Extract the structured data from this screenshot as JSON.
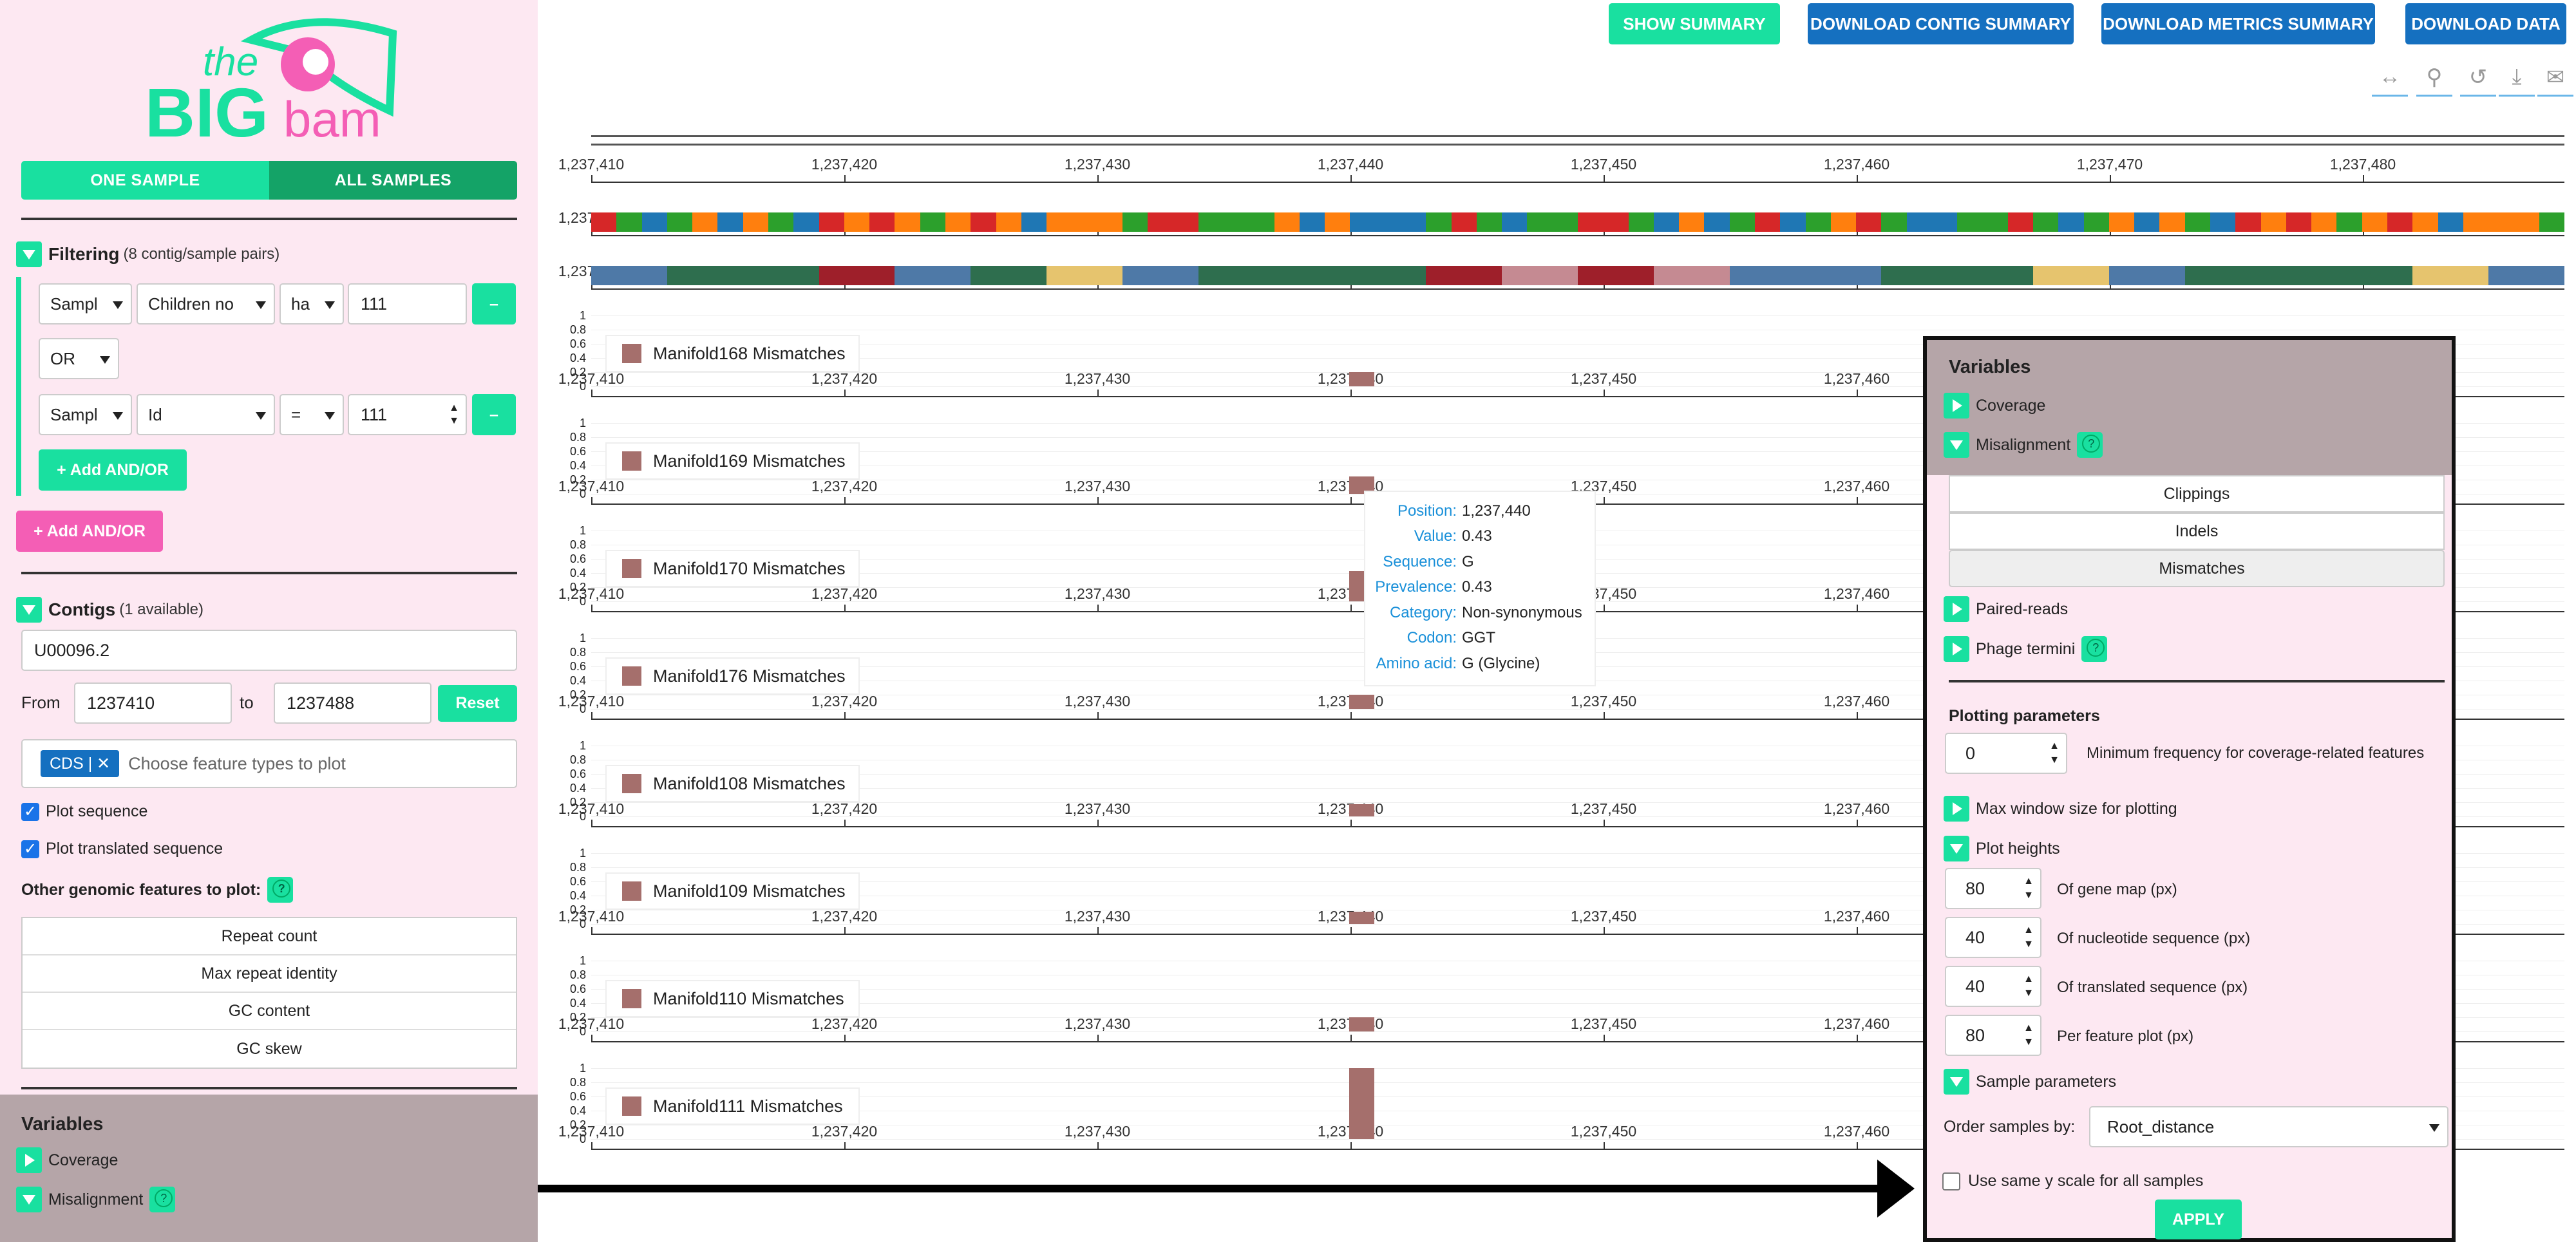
{
  "sidebar": {
    "mode": {
      "one": "ONE SAMPLE",
      "all": "ALL SAMPLES"
    },
    "filtering": {
      "title": "Filtering",
      "count": "(8 contig/sample pairs)",
      "row1": {
        "field": "Sampl",
        "attr": "Children no",
        "op": "ha",
        "value": "111",
        "remove": "–"
      },
      "connector": "OR",
      "row2": {
        "field": "Sampl",
        "attr": "Id",
        "op": "=",
        "value": "111",
        "remove": "–"
      },
      "add_inner": "+ Add AND/OR",
      "add_outer": "+ Add AND/OR"
    },
    "contigs": {
      "title": "Contigs",
      "count": "(1 available)",
      "value": "U00096.2",
      "from_label": "From",
      "from": "1237410",
      "to_label": "to",
      "to": "1237488",
      "reset": "Reset",
      "feature_chip": "CDS",
      "feature_placeholder": "Choose feature types to plot",
      "plot_sequence": "Plot sequence",
      "plot_translated": "Plot translated sequence",
      "other_label": "Other genomic features to plot:",
      "features": [
        "Repeat count",
        "Max repeat identity",
        "GC content",
        "GC skew"
      ]
    },
    "variables": {
      "title": "Variables",
      "items": [
        "Coverage",
        "Misalignment"
      ]
    }
  },
  "toolbar": {
    "show_summary": "SHOW SUMMARY",
    "dl_contig": "DOWNLOAD CONTIG SUMMARY",
    "dl_metrics": "DOWNLOAD METRICS SUMMARY",
    "dl_data": "DOWNLOAD DATA",
    "icons": [
      "pan-icon",
      "zoom-icon",
      "reset-icon",
      "download-icon",
      "comment-icon"
    ]
  },
  "axis": {
    "ticks": [
      "1,237,410",
      "1,237,420",
      "1,237,430",
      "1,237,440",
      "1,237,450",
      "1,237,460",
      "1,237,470",
      "1,237,480"
    ]
  },
  "panels": [
    {
      "label": "Manifold168 Mismatches",
      "value": 0.2
    },
    {
      "label": "Manifold169 Mismatches",
      "value": 0.25
    },
    {
      "label": "Manifold170 Mismatches",
      "value": 0.43
    },
    {
      "label": "Manifold176 Mismatches",
      "value": 0.2
    },
    {
      "label": "Manifold108 Mismatches",
      "value": 0.17
    },
    {
      "label": "Manifold109 Mismatches",
      "value": 0.17
    },
    {
      "label": "Manifold110 Mismatches",
      "value": 0.2
    },
    {
      "label": "Manifold111 Mismatches",
      "value": 1.0
    }
  ],
  "yticks": [
    "1",
    "0.8",
    "0.6",
    "0.4",
    "0.2",
    "0"
  ],
  "tooltip": {
    "rows": [
      {
        "k": "Position:",
        "v": "1,237,440"
      },
      {
        "k": "Value:",
        "v": "0.43"
      },
      {
        "k": "Sequence:",
        "v": "G"
      },
      {
        "k": "Prevalence:",
        "v": "0.43"
      },
      {
        "k": "Category:",
        "v": "Non-synonymous"
      },
      {
        "k": "Codon:",
        "v": "GGT"
      },
      {
        "k": "Amino acid:",
        "v": "G (Glycine)"
      }
    ]
  },
  "rpanel": {
    "title": "Variables",
    "coverage": "Coverage",
    "misalignment": "Misalignment",
    "sub": [
      "Clippings",
      "Indels",
      "Mismatches"
    ],
    "paired": "Paired-reads",
    "phage": "Phage termini",
    "plotting": "Plotting parameters",
    "minfreq_value": "0",
    "minfreq_label": "Minimum frequency for coverage-related features",
    "maxwin": "Max window size for plotting",
    "heights": "Plot heights",
    "h": [
      {
        "v": "80",
        "l": "Of gene map (px)"
      },
      {
        "v": "40",
        "l": "Of nucleotide sequence (px)"
      },
      {
        "v": "40",
        "l": "Of translated sequence (px)"
      },
      {
        "v": "80",
        "l": "Per feature plot (px)"
      }
    ],
    "sample_params": "Sample parameters",
    "order_label": "Order samples by:",
    "order_value": "Root_distance",
    "same_y": "Use same y scale for all samples",
    "apply": "APPLY"
  },
  "colors": {
    "accent": "#19e0a0",
    "pink": "#f45eb5",
    "bar": "#a56f6c",
    "blue_btn": "#1570c0"
  }
}
